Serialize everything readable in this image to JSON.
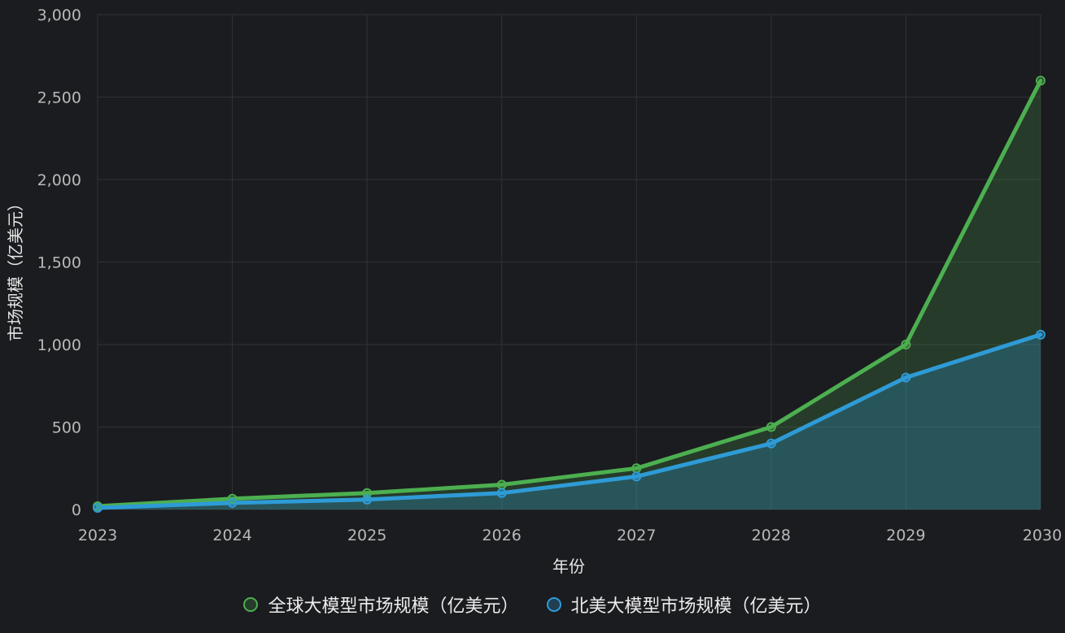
{
  "chart_data": {
    "type": "area",
    "x": [
      "2023",
      "2024",
      "2025",
      "2026",
      "2027",
      "2028",
      "2029",
      "2030"
    ],
    "xlabel": "年份",
    "ylabel": "市场规模（亿美元）",
    "ylim": [
      0,
      3000
    ],
    "yticks": [
      0,
      500,
      1000,
      1500,
      2000,
      2500,
      3000
    ],
    "ytick_labels": [
      "0",
      "500",
      "1,000",
      "1,500",
      "2,000",
      "2,500",
      "3,000"
    ],
    "grid": true,
    "legend_position": "bottom",
    "series": [
      {
        "name": "全球大模型市场规模（亿美元）",
        "values": [
          20,
          65,
          100,
          150,
          250,
          500,
          1000,
          2600
        ],
        "color": "#4caf50",
        "fill": "rgba(76,175,80,0.22)"
      },
      {
        "name": "北美大模型市场规模（亿美元）",
        "values": [
          10,
          40,
          60,
          100,
          200,
          400,
          800,
          1060
        ],
        "color": "#2e9bd6",
        "fill": "rgba(46,155,214,0.28)"
      }
    ]
  }
}
